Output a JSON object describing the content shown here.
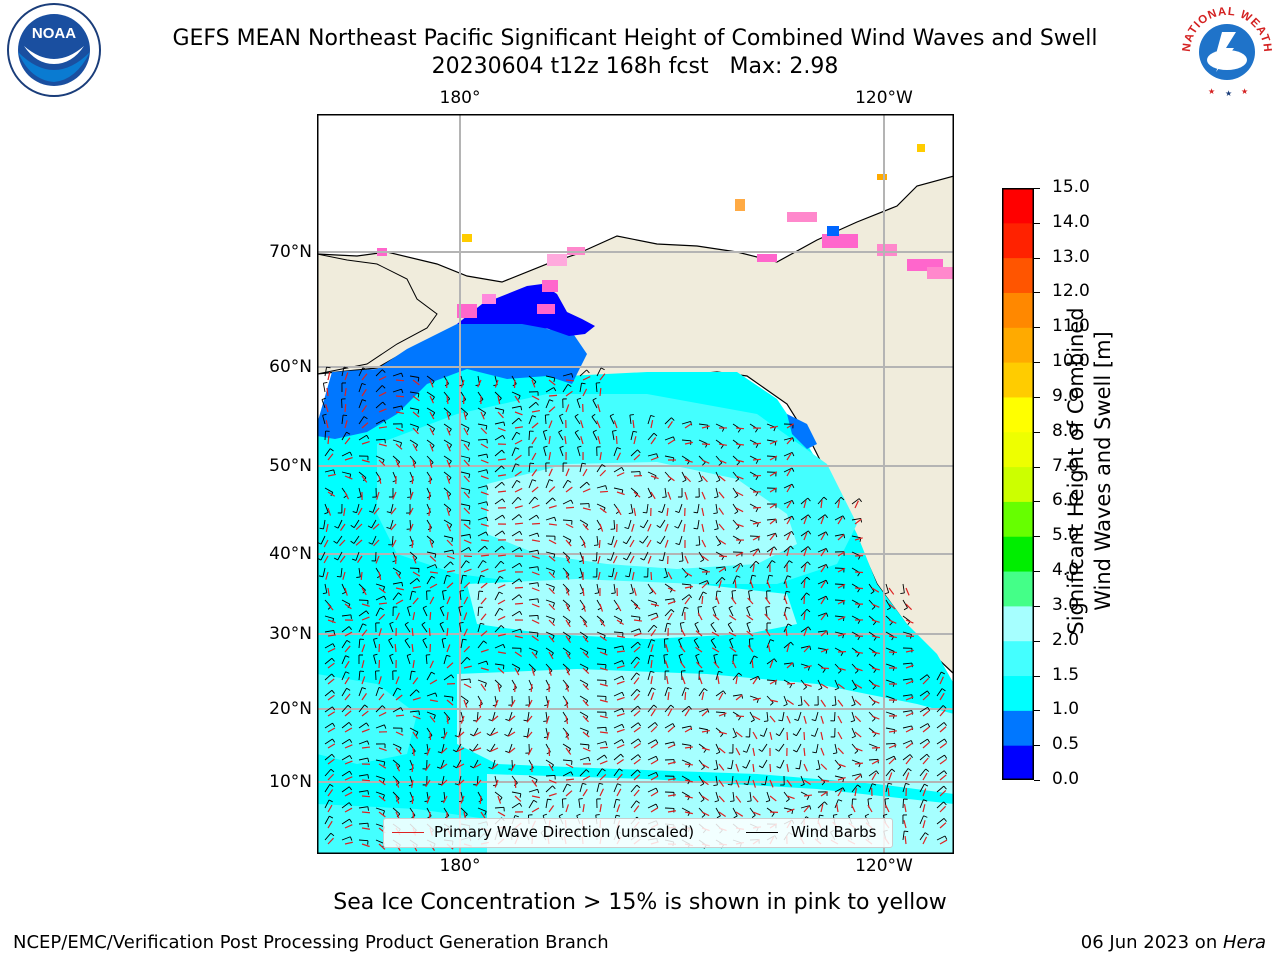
{
  "title": {
    "line1": "GEFS MEAN Northeast Pacific Significant Height of Combined Wind Waves and Swell",
    "line2": "20230604 t12z 168h fcst   Max: 2.98"
  },
  "logos": {
    "left": {
      "icon": "noaa-logo",
      "text": "NOAA"
    },
    "right": {
      "icon": "nws-logo",
      "text": "NATIONAL WEATHER SERVICE"
    }
  },
  "map": {
    "top_lon_labels": [
      "180°",
      "120°W"
    ],
    "bottom_lon_labels": [
      "180°",
      "120°W"
    ],
    "lat_labels": [
      "70°N",
      "60°N",
      "50°N",
      "40°N",
      "30°N",
      "20°N",
      "10°N"
    ],
    "colors": {
      "ocean_low": "#00ffff",
      "ocean_mid": "#44ffff",
      "ocean_high": "#a6ffff",
      "shelf": "#0088ff",
      "land": "#f0ecdc",
      "grid": "#b4b4b4"
    }
  },
  "legend": {
    "wave_label": "Primary Wave Direction (unscaled)",
    "barb_label": "Wind Barbs",
    "wave_color": "#dd2222",
    "barb_color": "#000000"
  },
  "colorbar": {
    "title_line1": "Significant Height of Combined",
    "title_line2": "Wind Waves and Swell [m]",
    "ticks": [
      "0.0",
      "0.5",
      "1.0",
      "1.5",
      "2.0",
      "3.0",
      "4.0",
      "5.0",
      "6.0",
      "7.0",
      "8.0",
      "9.0",
      "10.0",
      "11.0",
      "12.0",
      "13.0",
      "14.0",
      "15.0"
    ],
    "colors": [
      "#0000ff",
      "#0077ff",
      "#00ffff",
      "#44ffff",
      "#a6ffff",
      "#44ff88",
      "#00ee00",
      "#66ff00",
      "#ccff00",
      "#eeff00",
      "#ffff00",
      "#ffcc00",
      "#ffaa00",
      "#ff8800",
      "#ff5500",
      "#ff2200",
      "#ff0000"
    ]
  },
  "ice_note": "Sea Ice Concentration > 15% is shown in pink to yellow",
  "footer": {
    "left": "NCEP/EMC/Verification Post Processing Product Generation Branch",
    "right_prefix": "06 Jun 2023 on ",
    "right_host": "Hera"
  }
}
